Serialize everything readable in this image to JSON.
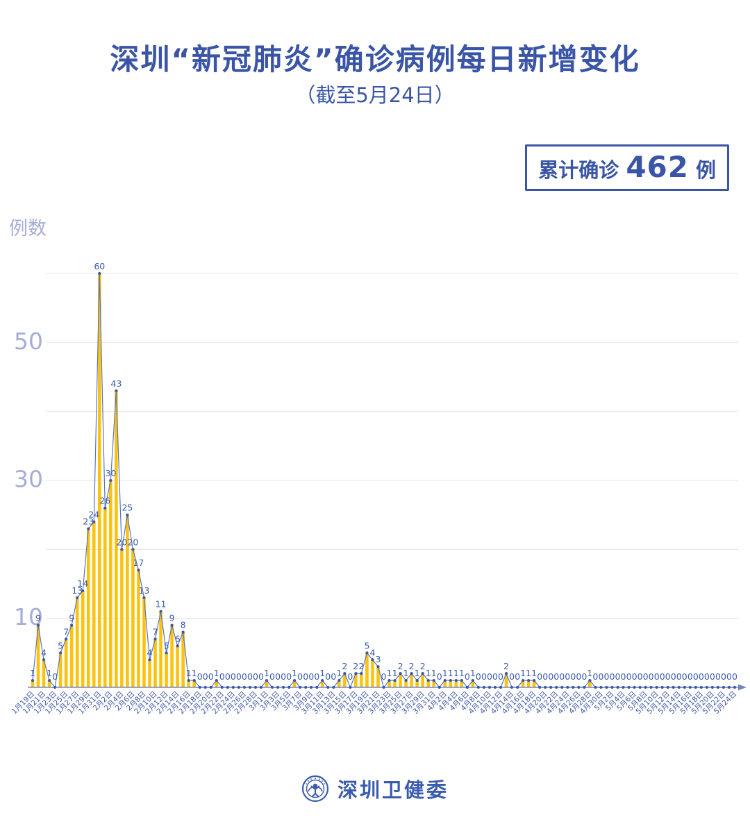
{
  "header": {
    "title": "深圳“新冠肺炎”确诊病例每日新增变化",
    "subtitle": "（截至5月24日）"
  },
  "badge": {
    "prefix": "累计确诊",
    "value": "462",
    "unit": "例"
  },
  "footer": {
    "org": "深圳卫健委",
    "logo": "shenzhen-health-commission-emblem"
  },
  "chart_data": {
    "type": "bar",
    "title": "深圳“新冠肺炎”确诊病例每日新增变化",
    "subtitle": "（截至5月24日）",
    "ylabel": "例数",
    "xlabel": "",
    "ylim": [
      0,
      62
    ],
    "yticks_labeled": [
      10,
      30,
      50
    ],
    "gridlines": [
      10,
      20,
      30,
      40,
      50,
      60
    ],
    "grid": "on",
    "legend": "none",
    "x_label_every": 2,
    "categories": [
      "1月19日",
      "1月20日",
      "1月21日",
      "1月22日",
      "1月23日",
      "1月24日",
      "1月25日",
      "1月26日",
      "1月27日",
      "1月28日",
      "1月29日",
      "1月30日",
      "1月31日",
      "2月1日",
      "2月2日",
      "2月3日",
      "2月4日",
      "2月5日",
      "2月6日",
      "2月7日",
      "2月8日",
      "2月9日",
      "2月10日",
      "2月11日",
      "2月12日",
      "2月13日",
      "2月14日",
      "2月15日",
      "2月16日",
      "2月17日",
      "2月18日",
      "2月19日",
      "2月20日",
      "2月21日",
      "2月22日",
      "2月23日",
      "2月24日",
      "2月25日",
      "2月26日",
      "2月27日",
      "2月28日",
      "2月29日",
      "3月1日",
      "3月2日",
      "3月3日",
      "3月4日",
      "3月5日",
      "3月6日",
      "3月7日",
      "3月8日",
      "3月9日",
      "3月10日",
      "3月11日",
      "3月12日",
      "3月13日",
      "3月14日",
      "3月15日",
      "3月16日",
      "3月17日",
      "3月18日",
      "3月19日",
      "3月20日",
      "3月21日",
      "3月22日",
      "3月23日",
      "3月24日",
      "3月25日",
      "3月26日",
      "3月27日",
      "3月28日",
      "3月29日",
      "3月30日",
      "3月31日",
      "4月1日",
      "4月2日",
      "4月3日",
      "4月4日",
      "4月5日",
      "4月6日",
      "4月7日",
      "4月8日",
      "4月9日",
      "4月10日",
      "4月11日",
      "4月12日",
      "4月13日",
      "4月14日",
      "4月15日",
      "4月16日",
      "4月17日",
      "4月18日",
      "4月19日",
      "4月20日",
      "4月21日",
      "4月22日",
      "4月23日",
      "4月24日",
      "4月25日",
      "4月26日",
      "4月27日",
      "4月28日",
      "4月29日",
      "4月30日",
      "5月1日",
      "5月2日",
      "5月3日",
      "5月4日",
      "5月5日",
      "5月6日",
      "5月7日",
      "5月8日",
      "5月9日",
      "5月10日",
      "5月11日",
      "5月12日",
      "5月13日",
      "5月14日",
      "5月15日",
      "5月16日",
      "5月17日",
      "5月18日",
      "5月19日",
      "5月20日",
      "5月21日",
      "5月22日",
      "5月23日",
      "5月24日"
    ],
    "values": [
      1,
      9,
      4,
      1,
      0,
      5,
      7,
      9,
      13,
      14,
      23,
      24,
      60,
      26,
      30,
      43,
      20,
      25,
      20,
      17,
      13,
      4,
      7,
      11,
      5,
      9,
      6,
      8,
      1,
      1,
      0,
      0,
      0,
      1,
      0,
      0,
      0,
      0,
      0,
      0,
      0,
      0,
      1,
      0,
      0,
      0,
      0,
      1,
      0,
      0,
      0,
      0,
      1,
      0,
      0,
      1,
      2,
      0,
      2,
      2,
      5,
      4,
      3,
      0,
      1,
      1,
      2,
      1,
      2,
      1,
      2,
      1,
      1,
      0,
      1,
      1,
      1,
      1,
      0,
      1,
      0,
      0,
      0,
      0,
      0,
      2,
      0,
      0,
      1,
      1,
      1,
      0,
      0,
      0,
      0,
      0,
      0,
      0,
      0,
      0,
      1,
      0,
      0,
      0,
      0,
      0,
      0,
      0,
      0,
      0,
      0,
      0,
      0,
      0,
      0,
      0,
      0,
      0,
      0,
      0,
      0,
      0,
      0,
      0,
      0,
      0,
      0
    ],
    "cumulative_total": 462,
    "colors": {
      "bar": "#FBC30D",
      "line": "#5B76BD",
      "point": "#3A57A8",
      "value_label": "#3C5BAC",
      "axis": "#7287C0",
      "date_label": "#4158A9",
      "ytick_label": "#A6ADD8",
      "grid": "#E9E9E9",
      "accent_blue": "#3A55A6"
    }
  }
}
